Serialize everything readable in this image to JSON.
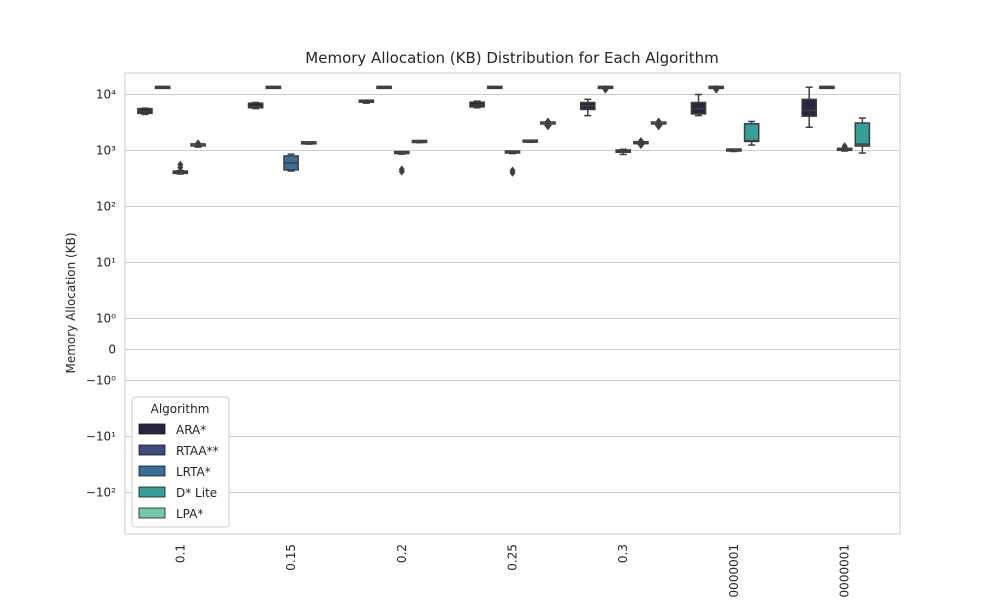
{
  "chart_data": {
    "type": "box",
    "title": "Memory Allocation (KB) Distribution for Each Algorithm",
    "xlabel": "",
    "ylabel": "Memory Allocation (KB)",
    "yscale": "symlog",
    "yticks": [
      {
        "value": 10000,
        "label": "10⁴"
      },
      {
        "value": 1000,
        "label": "10³"
      },
      {
        "value": 100,
        "label": "10²"
      },
      {
        "value": 10,
        "label": "10¹"
      },
      {
        "value": 1,
        "label": "10⁰"
      },
      {
        "value": 0,
        "label": "0"
      },
      {
        "value": -1,
        "label": "−10⁰"
      },
      {
        "value": -10,
        "label": "−10¹"
      },
      {
        "value": -100,
        "label": "−10²"
      }
    ],
    "grid": true,
    "categories": [
      "0.1",
      "0.15",
      "0.2",
      "0.25",
      "0.3",
      "0000001",
      "0000001"
    ],
    "legend": {
      "title": "Algorithm",
      "placement": "lower-left",
      "entries": [
        {
          "name": "ARA*",
          "color": "#2b2440"
        },
        {
          "name": "RTAA**",
          "color": "#414a7d"
        },
        {
          "name": "LRTA*",
          "color": "#3a6e96"
        },
        {
          "name": "D* Lite",
          "color": "#389e9a"
        },
        {
          "name": "LPA*",
          "color": "#76c9a8"
        }
      ]
    },
    "series": [
      {
        "name": "ARA*",
        "boxes": [
          {
            "whislo": 4400,
            "q1": 4600,
            "med": 5000,
            "q3": 5600,
            "whishi": 5700,
            "fliers": []
          },
          {
            "whislo": 5600,
            "q1": 5800,
            "med": 6200,
            "q3": 7000,
            "whishi": 7200,
            "fliers": []
          },
          {
            "whislo": 7000,
            "q1": 7200,
            "med": 7400,
            "q3": 7600,
            "whishi": 7700,
            "fliers": []
          },
          {
            "whislo": 5800,
            "q1": 6000,
            "med": 6500,
            "q3": 7300,
            "whishi": 7600,
            "fliers": []
          },
          {
            "whislo": 4200,
            "q1": 5400,
            "med": 6300,
            "q3": 7200,
            "whishi": 8200,
            "fliers": []
          },
          {
            "whislo": 4200,
            "q1": 4500,
            "med": 5600,
            "q3": 7200,
            "whishi": 10000,
            "fliers": []
          },
          {
            "whislo": 2600,
            "q1": 4100,
            "med": 5200,
            "q3": 8200,
            "whishi": 13500,
            "fliers": []
          }
        ]
      },
      {
        "name": "RTAA**",
        "boxes": [
          {
            "whislo": 13000,
            "q1": 13200,
            "med": 13300,
            "q3": 13400,
            "whishi": 13500,
            "fliers": []
          },
          {
            "whislo": 13000,
            "q1": 13200,
            "med": 13300,
            "q3": 13400,
            "whishi": 13500,
            "fliers": []
          },
          {
            "whislo": 13000,
            "q1": 13200,
            "med": 13300,
            "q3": 13400,
            "whishi": 13500,
            "fliers": []
          },
          {
            "whislo": 13000,
            "q1": 13200,
            "med": 13300,
            "q3": 13400,
            "whishi": 13500,
            "fliers": []
          },
          {
            "whislo": 13000,
            "q1": 13200,
            "med": 13300,
            "q3": 13400,
            "whishi": 13500,
            "fliers": [
              12600,
              12200
            ]
          },
          {
            "whislo": 13000,
            "q1": 13200,
            "med": 13300,
            "q3": 13400,
            "whishi": 13500,
            "fliers": [
              12600,
              12200
            ]
          },
          {
            "whislo": 13000,
            "q1": 13200,
            "med": 13300,
            "q3": 13400,
            "whishi": 13500,
            "fliers": []
          }
        ]
      },
      {
        "name": "LRTA*",
        "boxes": [
          {
            "whislo": 380,
            "q1": 390,
            "med": 410,
            "q3": 430,
            "whishi": 440,
            "fliers": [
              500,
              560
            ]
          },
          {
            "whislo": 430,
            "q1": 450,
            "med": 600,
            "q3": 800,
            "whishi": 860,
            "fliers": []
          },
          {
            "whislo": 860,
            "q1": 880,
            "med": 900,
            "q3": 920,
            "whishi": 940,
            "fliers": [
              420,
              460
            ]
          },
          {
            "whislo": 880,
            "q1": 900,
            "med": 920,
            "q3": 940,
            "whishi": 960,
            "fliers": [
              400,
              440
            ]
          },
          {
            "whislo": 850,
            "q1": 930,
            "med": 980,
            "q3": 1020,
            "whishi": 1050,
            "fliers": []
          },
          {
            "whislo": 960,
            "q1": 990,
            "med": 1000,
            "q3": 1020,
            "whishi": 1040,
            "fliers": []
          },
          {
            "whislo": 980,
            "q1": 1000,
            "med": 1020,
            "q3": 1050,
            "whishi": 1080,
            "fliers": [
              1100,
              1150,
              1200
            ]
          }
        ]
      },
      {
        "name": "D* Lite",
        "boxes": [
          {
            "whislo": 1150,
            "q1": 1200,
            "med": 1220,
            "q3": 1260,
            "whishi": 1300,
            "fliers": [
              1350
            ]
          },
          {
            "whislo": 1300,
            "q1": 1320,
            "med": 1340,
            "q3": 1370,
            "whishi": 1400,
            "fliers": []
          },
          {
            "whislo": 1380,
            "q1": 1400,
            "med": 1420,
            "q3": 1450,
            "whishi": 1480,
            "fliers": []
          },
          {
            "whislo": 1400,
            "q1": 1420,
            "med": 1440,
            "q3": 1470,
            "whishi": 1500,
            "fliers": []
          },
          {
            "whislo": 1300,
            "q1": 1330,
            "med": 1350,
            "q3": 1380,
            "whishi": 1400,
            "fliers": [
              1250,
              1480
            ]
          },
          {
            "whislo": 1250,
            "q1": 1450,
            "med": 1500,
            "q3": 3000,
            "whishi": 3300,
            "fliers": []
          },
          {
            "whislo": 900,
            "q1": 1200,
            "med": 1300,
            "q3": 3100,
            "whishi": 3800,
            "fliers": []
          }
        ]
      },
      {
        "name": "LPA*",
        "boxes": [
          null,
          null,
          null,
          {
            "whislo": 2800,
            "q1": 2900,
            "med": 3000,
            "q3": 3100,
            "whishi": 3200,
            "fliers": [
              2700,
              3300
            ]
          },
          {
            "whislo": 2800,
            "q1": 2900,
            "med": 3000,
            "q3": 3100,
            "whishi": 3200,
            "fliers": [
              2700,
              3300
            ]
          },
          null,
          null
        ]
      }
    ]
  }
}
